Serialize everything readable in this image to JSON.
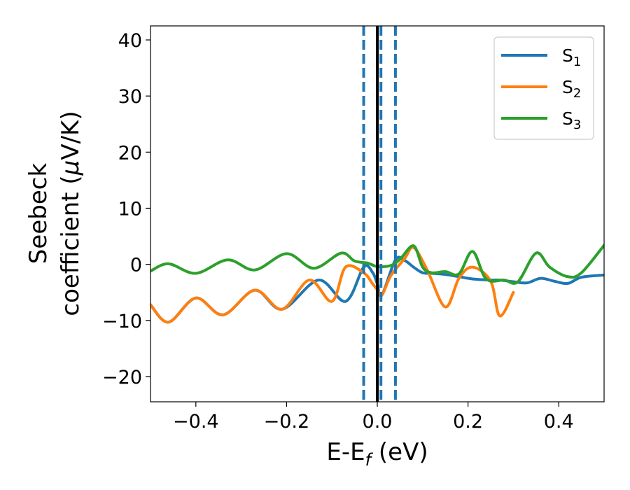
{
  "chart_data": {
    "type": "line",
    "xlabel": {
      "main": "E-E",
      "sub": "f",
      "unit": " (eV)"
    },
    "ylabel": {
      "line1": "Seebeck",
      "line2_pre": "coefficient  (",
      "mu": "μ",
      "line2_post": "V/K)"
    },
    "xlim": [
      -0.5,
      0.5
    ],
    "ylim": [
      -24.5,
      42.5
    ],
    "xticks": [
      -0.4,
      -0.2,
      0.0,
      0.2,
      0.4
    ],
    "xtick_labels": [
      "−0.4",
      "−0.2",
      "0.0",
      "0.2",
      "0.4"
    ],
    "yticks": [
      -20,
      -10,
      0,
      10,
      20,
      30,
      40
    ],
    "ytick_labels": [
      "−20",
      "−10",
      "0",
      "10",
      "20",
      "30",
      "40"
    ],
    "grid": false,
    "legend_position": "top-right",
    "vertical_lines": [
      {
        "x": 0.0,
        "style": "solid",
        "color": "#000000"
      },
      {
        "x": -0.03,
        "style": "dashed",
        "color": "#1f77b4"
      },
      {
        "x": 0.008,
        "style": "dashed",
        "color": "#1f77b4"
      },
      {
        "x": 0.04,
        "style": "dashed",
        "color": "#1f77b4"
      }
    ],
    "series": [
      {
        "name": "S",
        "sub": "1",
        "color": "#1f77b4",
        "x": [
          -0.5,
          -0.46,
          -0.4,
          -0.34,
          -0.27,
          -0.21,
          -0.13,
          -0.07,
          -0.03,
          -0.01,
          0.0,
          0.01,
          0.04,
          0.06,
          0.08,
          0.1,
          0.12,
          0.15,
          0.18,
          0.21,
          0.25,
          0.27,
          0.3,
          0.33,
          0.36,
          0.39,
          0.42,
          0.45,
          0.5
        ],
        "y": [
          -7.2,
          -10.3,
          -6.0,
          -9.0,
          -4.6,
          -8.0,
          -2.8,
          -6.6,
          -0.5,
          -1.5,
          -3.5,
          -5.5,
          0.8,
          0.7,
          -0.5,
          -1.5,
          -1.6,
          -1.8,
          -2.2,
          -2.6,
          -2.8,
          -2.8,
          -3.1,
          -3.3,
          -2.5,
          -3.0,
          -3.4,
          -2.3,
          -1.9
        ]
      },
      {
        "name": "S",
        "sub": "2",
        "color": "#ff7f0e",
        "x": [
          -0.5,
          -0.46,
          -0.4,
          -0.34,
          -0.27,
          -0.21,
          -0.15,
          -0.1,
          -0.07,
          -0.03,
          -0.01,
          0.0,
          0.01,
          0.03,
          0.06,
          0.08,
          0.11,
          0.15,
          0.18,
          0.21,
          0.25,
          0.27,
          0.3
        ],
        "y": [
          -7.2,
          -10.3,
          -6.0,
          -9.0,
          -4.6,
          -8.0,
          -2.8,
          -6.6,
          -0.5,
          -1.5,
          -3.5,
          -4.5,
          -5.5,
          -2.0,
          1.0,
          3.0,
          -1.0,
          -7.6,
          -2.5,
          -0.5,
          -3.0,
          -9.2,
          -5.0
        ]
      },
      {
        "name": "S",
        "sub": "3",
        "color": "#2ca02c",
        "x": [
          -0.5,
          -0.46,
          -0.4,
          -0.33,
          -0.27,
          -0.2,
          -0.14,
          -0.08,
          -0.05,
          -0.02,
          0.0,
          0.03,
          0.05,
          0.08,
          0.1,
          0.12,
          0.15,
          0.18,
          0.21,
          0.24,
          0.28,
          0.31,
          0.35,
          0.38,
          0.42,
          0.45,
          0.5
        ],
        "y": [
          -1.2,
          0.1,
          -1.6,
          0.8,
          -1.0,
          1.9,
          -0.7,
          2.0,
          0.6,
          0.2,
          -0.4,
          -0.2,
          0.9,
          3.3,
          -0.5,
          -1.5,
          -1.3,
          -1.7,
          2.3,
          -2.6,
          -2.8,
          -3.1,
          2.0,
          -0.5,
          -2.2,
          -1.5,
          3.4
        ]
      }
    ]
  }
}
